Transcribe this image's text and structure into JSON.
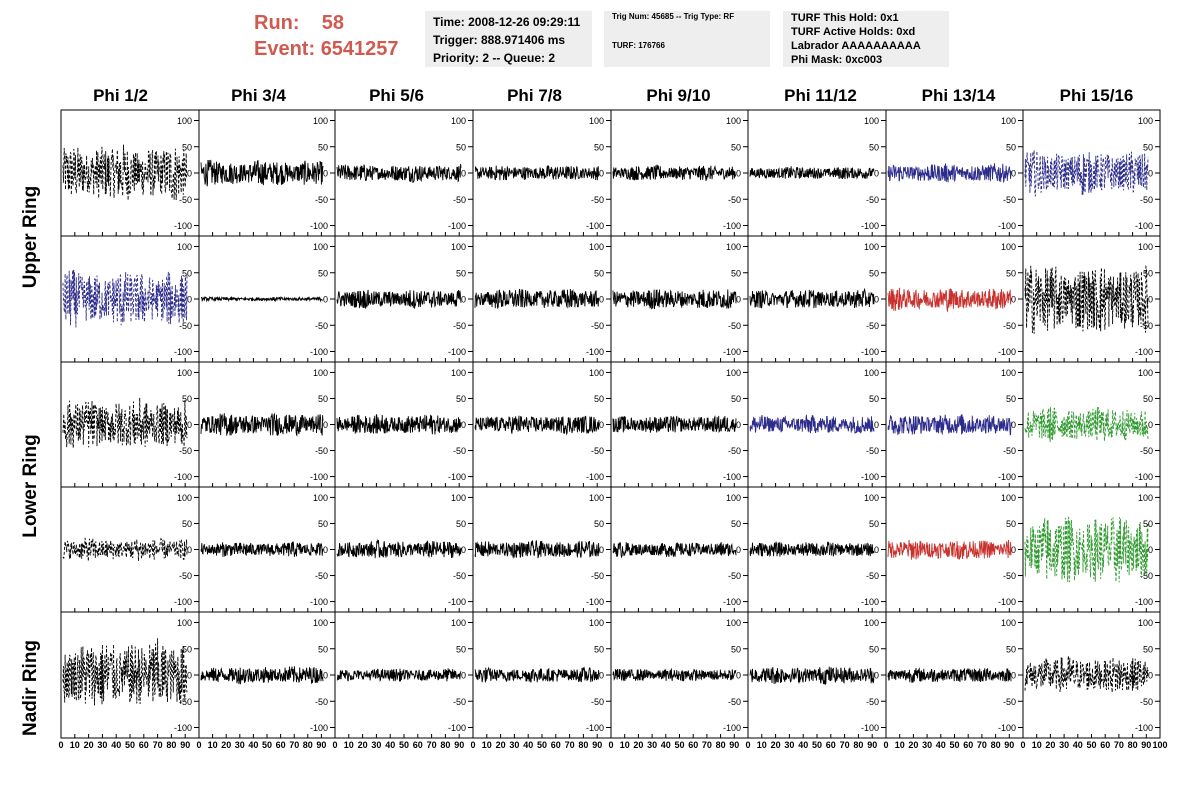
{
  "header": {
    "run_label": "Run:",
    "run_value": "58",
    "event_label": "Event:",
    "event_value": "6541257",
    "time": "Time: 2008-12-26 09:29:11",
    "trigger": "Trigger: 888.971406 ms",
    "priority": "Priority: 2 -- Queue: 2",
    "trig_info": "Trig Num: 45685 -- Trig Type: RF",
    "turf": "TURF: 176766",
    "turf_this_hold": "TURF This Hold: 0x1",
    "turf_active_holds": "TURF Active Holds: 0xd",
    "labrador": "Labrador AAAAAAAAAA",
    "phi_mask": "Phi Mask: 0xc003"
  },
  "chart_data": {
    "type": "line",
    "columns": [
      "Phi 1/2",
      "Phi 3/4",
      "Phi 5/6",
      "Phi 7/8",
      "Phi 9/10",
      "Phi 11/12",
      "Phi 13/14",
      "Phi 15/16"
    ],
    "ring_labels": [
      "Upper Ring",
      "Lower Ring",
      "Nadir Ring"
    ],
    "rows": 5,
    "xlim": [
      0,
      100
    ],
    "ylim": [
      -120,
      120
    ],
    "y_ticks": [
      100,
      50,
      0,
      -50,
      -100
    ],
    "x_ticks": [
      0,
      10,
      20,
      30,
      40,
      50,
      60,
      70,
      80,
      90,
      100
    ],
    "colors": {
      "black": "#000000",
      "blue": "#2c2c8c",
      "red": "#c8322e",
      "green": "#2e9a2e"
    },
    "panels": [
      [
        {
          "amp": 45,
          "color": "black",
          "dashed": true
        },
        {
          "amp": 20,
          "color": "black",
          "dashed": false
        },
        {
          "amp": 14,
          "color": "black",
          "dashed": false
        },
        {
          "amp": 12,
          "color": "black",
          "dashed": false
        },
        {
          "amp": 12,
          "color": "black",
          "dashed": false
        },
        {
          "amp": 10,
          "color": "black",
          "dashed": false
        },
        {
          "amp": 15,
          "color": "blue",
          "dashed": false
        },
        {
          "amp": 35,
          "color": "blue",
          "dashed": true
        }
      ],
      [
        {
          "amp": 45,
          "color": "blue",
          "dashed": true
        },
        {
          "amp": 3,
          "color": "black",
          "dashed": false
        },
        {
          "amp": 15,
          "color": "black",
          "dashed": false
        },
        {
          "amp": 16,
          "color": "black",
          "dashed": false
        },
        {
          "amp": 16,
          "color": "black",
          "dashed": false
        },
        {
          "amp": 15,
          "color": "black",
          "dashed": false
        },
        {
          "amp": 18,
          "color": "red",
          "dashed": false
        },
        {
          "amp": 55,
          "color": "black",
          "dashed": true
        }
      ],
      [
        {
          "amp": 40,
          "color": "black",
          "dashed": true
        },
        {
          "amp": 18,
          "color": "black",
          "dashed": false
        },
        {
          "amp": 16,
          "color": "black",
          "dashed": false
        },
        {
          "amp": 15,
          "color": "black",
          "dashed": false
        },
        {
          "amp": 14,
          "color": "black",
          "dashed": false
        },
        {
          "amp": 15,
          "color": "blue",
          "dashed": false
        },
        {
          "amp": 17,
          "color": "blue",
          "dashed": false
        },
        {
          "amp": 28,
          "color": "green",
          "dashed": true
        }
      ],
      [
        {
          "amp": 18,
          "color": "black",
          "dashed": true
        },
        {
          "amp": 12,
          "color": "black",
          "dashed": false
        },
        {
          "amp": 14,
          "color": "black",
          "dashed": false
        },
        {
          "amp": 14,
          "color": "black",
          "dashed": false
        },
        {
          "amp": 12,
          "color": "black",
          "dashed": false
        },
        {
          "amp": 12,
          "color": "black",
          "dashed": false
        },
        {
          "amp": 16,
          "color": "red",
          "dashed": false
        },
        {
          "amp": 55,
          "color": "green",
          "dashed": true
        }
      ],
      [
        {
          "amp": 55,
          "color": "black",
          "dashed": true
        },
        {
          "amp": 14,
          "color": "black",
          "dashed": false
        },
        {
          "amp": 10,
          "color": "black",
          "dashed": false
        },
        {
          "amp": 12,
          "color": "black",
          "dashed": false
        },
        {
          "amp": 10,
          "color": "black",
          "dashed": false
        },
        {
          "amp": 14,
          "color": "black",
          "dashed": false
        },
        {
          "amp": 12,
          "color": "black",
          "dashed": false
        },
        {
          "amp": 30,
          "color": "black",
          "dashed": true
        }
      ]
    ]
  }
}
